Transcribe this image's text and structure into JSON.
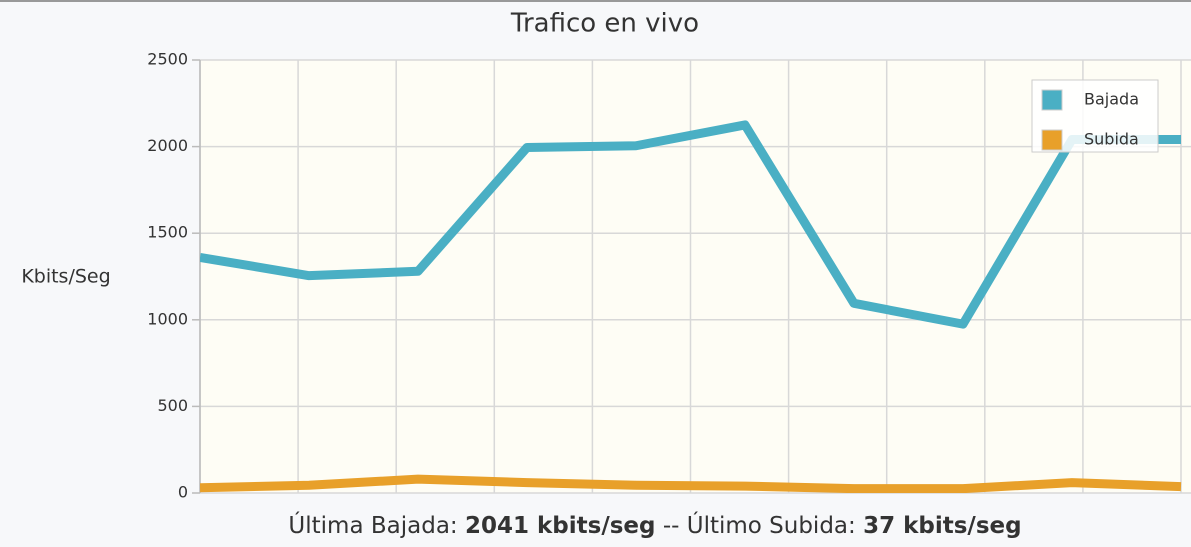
{
  "chart_data": {
    "type": "line",
    "title": "Trafico en vivo",
    "ylabel": "Kbits/Seg",
    "categories": [
      null,
      null,
      null,
      null,
      null,
      null,
      null,
      null,
      null,
      null
    ],
    "series": [
      {
        "name": "Bajada",
        "color": "#4aafc4",
        "values": [
          1360,
          1255,
          1280,
          1995,
          2005,
          2125,
          1095,
          975,
          2041,
          2041
        ]
      },
      {
        "name": "Subida",
        "color": "#e8a02a",
        "values": [
          30,
          45,
          80,
          60,
          45,
          40,
          25,
          25,
          60,
          37
        ]
      }
    ],
    "ylim": [
      0,
      2500
    ],
    "yticks": [
      0,
      500,
      1000,
      1500,
      2000,
      2500
    ],
    "grid": true,
    "legend": "upper right"
  },
  "footer": {
    "label1": "Última Bajada:",
    "value1": "2041 kbits/seg",
    "separator": "--",
    "label2": "Último Subida:",
    "value2": "37 kbits/seg"
  }
}
